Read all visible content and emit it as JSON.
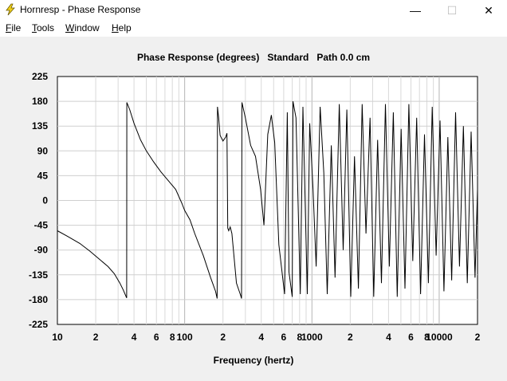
{
  "window": {
    "title": "Hornresp - Phase Response",
    "icon": "lightning-bolt-icon",
    "min_glyph": "—",
    "max_glyph": "☐",
    "close_glyph": "✕"
  },
  "menu": [
    {
      "first": "F",
      "rest": "ile"
    },
    {
      "first": "T",
      "rest": "ools"
    },
    {
      "first": "W",
      "rest": "indow"
    },
    {
      "first": "H",
      "rest": "elp"
    }
  ],
  "chart_data": {
    "type": "line",
    "title": "Phase Response (degrees)   Standard   Path 0.0 cm",
    "xlabel": "Frequency (hertz)",
    "ylabel": "",
    "x_scale": "log",
    "xlim": [
      10,
      20000
    ],
    "ylim": [
      -225,
      225
    ],
    "grid": true,
    "y_ticks": [
      225,
      180,
      135,
      90,
      45,
      0,
      -45,
      -90,
      -135,
      -180,
      -225
    ],
    "y_tick_labels": [
      "225",
      "180",
      "135",
      "90",
      "45",
      "0",
      "-45",
      "-90",
      "-135",
      "-180",
      "-225"
    ],
    "x_tick_labels": [
      {
        "x": 10,
        "label": "10"
      },
      {
        "x": 20,
        "label": "2"
      },
      {
        "x": 40,
        "label": "4"
      },
      {
        "x": 60,
        "label": "6"
      },
      {
        "x": 80,
        "label": "8"
      },
      {
        "x": 100,
        "label": "100"
      },
      {
        "x": 200,
        "label": "2"
      },
      {
        "x": 400,
        "label": "4"
      },
      {
        "x": 600,
        "label": "6"
      },
      {
        "x": 800,
        "label": "8"
      },
      {
        "x": 1000,
        "label": "1000"
      },
      {
        "x": 2000,
        "label": "2"
      },
      {
        "x": 4000,
        "label": "4"
      },
      {
        "x": 6000,
        "label": "6"
      },
      {
        "x": 8000,
        "label": "8"
      },
      {
        "x": 10000,
        "label": "10000"
      },
      {
        "x": 20000,
        "label": "2"
      }
    ],
    "series": [
      {
        "points": [
          [
            10,
            -55
          ],
          [
            12,
            -65
          ],
          [
            15,
            -78
          ],
          [
            18,
            -92
          ],
          [
            21,
            -105
          ],
          [
            25,
            -120
          ],
          [
            28,
            -133
          ],
          [
            31,
            -150
          ],
          [
            33,
            -163
          ],
          [
            35,
            -177
          ],
          [
            35.1,
            178
          ],
          [
            37,
            165
          ],
          [
            40,
            140
          ],
          [
            45,
            110
          ],
          [
            50,
            90
          ],
          [
            57,
            70
          ],
          [
            65,
            52
          ],
          [
            75,
            35
          ],
          [
            85,
            20
          ],
          [
            95,
            -5
          ],
          [
            100,
            -18
          ],
          [
            110,
            -35
          ],
          [
            120,
            -60
          ],
          [
            140,
            -100
          ],
          [
            160,
            -140
          ],
          [
            175,
            -165
          ],
          [
            180,
            -178
          ],
          [
            181,
            170
          ],
          [
            185,
            150
          ],
          [
            190,
            118
          ],
          [
            200,
            108
          ],
          [
            210,
            115
          ],
          [
            215,
            122
          ],
          [
            218,
            -50
          ],
          [
            222,
            -55
          ],
          [
            228,
            -48
          ],
          [
            235,
            -60
          ],
          [
            255,
            -150
          ],
          [
            275,
            -172
          ],
          [
            280,
            -178
          ],
          [
            282,
            178
          ],
          [
            300,
            150
          ],
          [
            330,
            100
          ],
          [
            360,
            80
          ],
          [
            395,
            20
          ],
          [
            420,
            -45
          ],
          [
            450,
            120
          ],
          [
            480,
            155
          ],
          [
            510,
            105
          ],
          [
            550,
            -80
          ],
          [
            610,
            -170
          ],
          [
            640,
            160
          ],
          [
            660,
            -130
          ],
          [
            700,
            -175
          ],
          [
            710,
            180
          ],
          [
            750,
            150
          ],
          [
            810,
            -170
          ],
          [
            850,
            170
          ],
          [
            920,
            -170
          ],
          [
            960,
            140
          ],
          [
            1020,
            20
          ],
          [
            1080,
            -120
          ],
          [
            1160,
            170
          ],
          [
            1240,
            50
          ],
          [
            1320,
            -170
          ],
          [
            1420,
            100
          ],
          [
            1520,
            -140
          ],
          [
            1640,
            175
          ],
          [
            1760,
            -90
          ],
          [
            1880,
            165
          ],
          [
            2020,
            -175
          ],
          [
            2160,
            80
          ],
          [
            2320,
            -160
          ],
          [
            2480,
            175
          ],
          [
            2660,
            -60
          ],
          [
            2860,
            150
          ],
          [
            3060,
            -175
          ],
          [
            3280,
            110
          ],
          [
            3520,
            -150
          ],
          [
            3780,
            175
          ],
          [
            4060,
            -120
          ],
          [
            4360,
            160
          ],
          [
            4680,
            -175
          ],
          [
            5020,
            130
          ],
          [
            5380,
            -160
          ],
          [
            5780,
            175
          ],
          [
            6200,
            -110
          ],
          [
            6650,
            150
          ],
          [
            7140,
            -170
          ],
          [
            7660,
            120
          ],
          [
            8220,
            -150
          ],
          [
            8820,
            170
          ],
          [
            9460,
            -100
          ],
          [
            10150,
            145
          ],
          [
            10890,
            -165
          ],
          [
            11690,
            115
          ],
          [
            12540,
            -145
          ],
          [
            13460,
            160
          ],
          [
            14440,
            -120
          ],
          [
            15490,
            135
          ],
          [
            16620,
            -150
          ],
          [
            17830,
            125
          ],
          [
            19130,
            -140
          ],
          [
            20000,
            20
          ]
        ]
      }
    ]
  }
}
